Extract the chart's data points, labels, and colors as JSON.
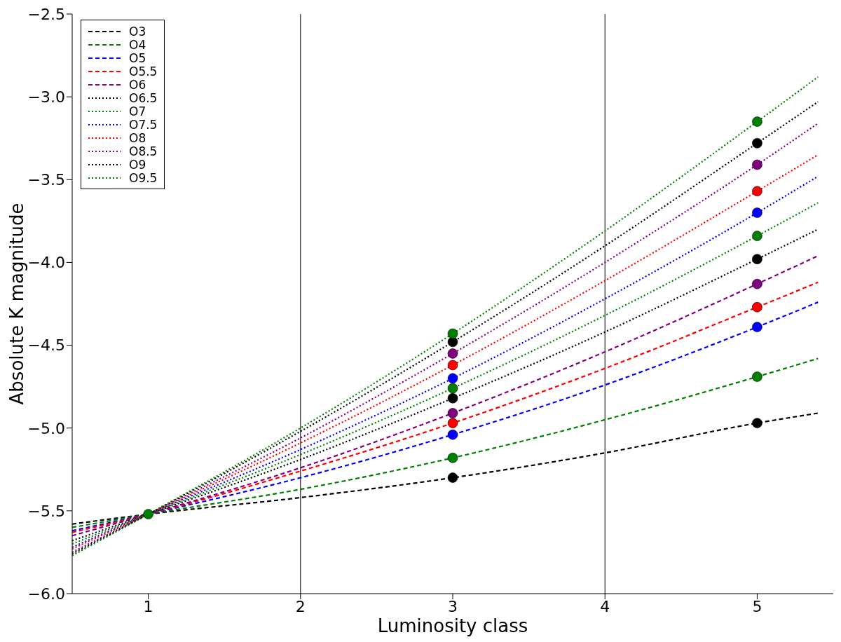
{
  "chart_data": {
    "type": "line",
    "xlabel": "Luminosity class",
    "ylabel": "Absolute K magnitude",
    "xlim": [
      0.5,
      5.5
    ],
    "xticks": [
      1,
      2,
      3,
      4,
      5
    ],
    "ylim": [
      -6,
      -2.5
    ],
    "yticks": [
      {
        "value": -6,
        "label": "−6.0"
      },
      {
        "value": -5.5,
        "label": "−5.5"
      },
      {
        "value": -5,
        "label": "−5.0"
      },
      {
        "value": -4.5,
        "label": "−4.5"
      },
      {
        "value": -4,
        "label": "−4.0"
      },
      {
        "value": -3.5,
        "label": "−3.5"
      },
      {
        "value": -3,
        "label": "−3.0"
      },
      {
        "value": -2.5,
        "label": "−2.5"
      }
    ],
    "grid": false,
    "legend": "top left",
    "marker": "none",
    "ref_lines": [
      {
        "axis": "x",
        "value": 2,
        "color": "#000000"
      },
      {
        "axis": "x",
        "value": 4,
        "color": "#000000"
      }
    ],
    "series": [
      {
        "name": "O3",
        "color": "#000000",
        "line_style": "dashed",
        "x": [
          0.5,
          1,
          2,
          3,
          4,
          5,
          5.4
        ],
        "values": [
          -5.58,
          -5.52,
          -5.42,
          -5.3,
          -5.15,
          -4.97,
          -4.91
        ]
      },
      {
        "name": "O4",
        "color": "#008000",
        "line_style": "dashed",
        "x": [
          0.5,
          1,
          2,
          3,
          4,
          5,
          5.4
        ],
        "values": [
          -5.6,
          -5.52,
          -5.37,
          -5.18,
          -4.95,
          -4.69,
          -4.58
        ]
      },
      {
        "name": "O5",
        "color": "#0000ff",
        "line_style": "dashed",
        "x": [
          0.5,
          1,
          2,
          3,
          4,
          5,
          5.4
        ],
        "values": [
          -5.62,
          -5.52,
          -5.3,
          -5.04,
          -4.74,
          -4.39,
          -4.24
        ]
      },
      {
        "name": "O5.5",
        "color": "#ff0000",
        "line_style": "dashed",
        "x": [
          0.5,
          1,
          2,
          3,
          4,
          5,
          5.4
        ],
        "values": [
          -5.63,
          -5.52,
          -5.26,
          -4.97,
          -4.64,
          -4.27,
          -4.12
        ]
      },
      {
        "name": "O6",
        "color": "#800080",
        "line_style": "dashed",
        "x": [
          0.5,
          1,
          2,
          3,
          4,
          5,
          5.4
        ],
        "values": [
          -5.65,
          -5.52,
          -5.24,
          -4.91,
          -4.54,
          -4.13,
          -3.96
        ]
      },
      {
        "name": "O6.5",
        "color": "#000000",
        "line_style": "dotted",
        "x": [
          0.5,
          1,
          2,
          3,
          4,
          5,
          5.4
        ],
        "values": [
          -5.68,
          -5.52,
          -5.19,
          -4.82,
          -4.42,
          -3.98,
          -3.8
        ]
      },
      {
        "name": "O7",
        "color": "#008000",
        "line_style": "dotted",
        "x": [
          0.5,
          1,
          2,
          3,
          4,
          5,
          5.4
        ],
        "values": [
          -5.7,
          -5.52,
          -5.16,
          -4.76,
          -4.32,
          -3.84,
          -3.64
        ]
      },
      {
        "name": "O7.5",
        "color": "#0000ff",
        "line_style": "dotted",
        "x": [
          0.5,
          1,
          2,
          3,
          4,
          5,
          5.4
        ],
        "values": [
          -5.72,
          -5.52,
          -5.13,
          -4.7,
          -4.22,
          -3.7,
          -3.48
        ]
      },
      {
        "name": "O8",
        "color": "#ff0000",
        "line_style": "dotted",
        "x": [
          0.5,
          1,
          2,
          3,
          4,
          5,
          5.4
        ],
        "values": [
          -5.73,
          -5.52,
          -5.09,
          -4.62,
          -4.11,
          -3.57,
          -3.35
        ]
      },
      {
        "name": "O8.5",
        "color": "#800080",
        "line_style": "dotted",
        "x": [
          0.5,
          1,
          2,
          3,
          4,
          5,
          5.4
        ],
        "values": [
          -5.75,
          -5.52,
          -5.06,
          -4.55,
          -4.0,
          -3.41,
          -3.16
        ]
      },
      {
        "name": "O9",
        "color": "#000000",
        "line_style": "dotted",
        "x": [
          0.5,
          1,
          2,
          3,
          4,
          5,
          5.4
        ],
        "values": [
          -5.76,
          -5.52,
          -5.02,
          -4.48,
          -3.9,
          -3.28,
          -3.03
        ]
      },
      {
        "name": "O9.5",
        "color": "#008000",
        "line_style": "dotted",
        "x": [
          0.5,
          1,
          2,
          3,
          4,
          5,
          5.4
        ],
        "values": [
          -5.77,
          -5.52,
          -5.0,
          -4.43,
          -3.81,
          -3.15,
          -2.88
        ]
      },
      {
        "type": "scatter",
        "color": "#000000",
        "marker": "circle",
        "x": [
          3,
          5
        ],
        "values": [
          -5.3,
          -4.97
        ]
      },
      {
        "type": "scatter",
        "color": "#008000",
        "marker": "circle",
        "x": [
          3,
          5
        ],
        "values": [
          -5.18,
          -4.69
        ]
      },
      {
        "type": "scatter",
        "color": "#0000ff",
        "marker": "circle",
        "x": [
          3,
          5
        ],
        "values": [
          -5.04,
          -4.39
        ]
      },
      {
        "type": "scatter",
        "color": "#ff0000",
        "marker": "circle",
        "x": [
          3,
          5
        ],
        "values": [
          -4.97,
          -4.27
        ]
      },
      {
        "type": "scatter",
        "color": "#800080",
        "marker": "circle",
        "x": [
          3,
          5
        ],
        "values": [
          -4.91,
          -4.13
        ]
      },
      {
        "type": "scatter",
        "color": "#000000",
        "marker": "circle",
        "x": [
          3,
          5
        ],
        "values": [
          -4.82,
          -3.98
        ]
      },
      {
        "type": "scatter",
        "color": "#008000",
        "marker": "circle",
        "x": [
          3,
          5
        ],
        "values": [
          -4.76,
          -3.84
        ]
      },
      {
        "type": "scatter",
        "color": "#0000ff",
        "marker": "circle",
        "x": [
          3,
          5
        ],
        "values": [
          -4.7,
          -3.7
        ]
      },
      {
        "type": "scatter",
        "color": "#ff0000",
        "marker": "circle",
        "x": [
          3,
          5
        ],
        "values": [
          -4.62,
          -3.57
        ]
      },
      {
        "type": "scatter",
        "color": "#800080",
        "marker": "circle",
        "x": [
          3,
          5
        ],
        "values": [
          -4.55,
          -3.41
        ]
      },
      {
        "type": "scatter",
        "color": "#000000",
        "marker": "circle",
        "x": [
          3,
          5
        ],
        "values": [
          -4.48,
          -3.28
        ]
      },
      {
        "type": "scatter",
        "color": "#008000",
        "marker": "circle",
        "x": [
          1,
          3,
          5
        ],
        "values": [
          -5.52,
          -4.43,
          -3.15
        ]
      }
    ]
  }
}
